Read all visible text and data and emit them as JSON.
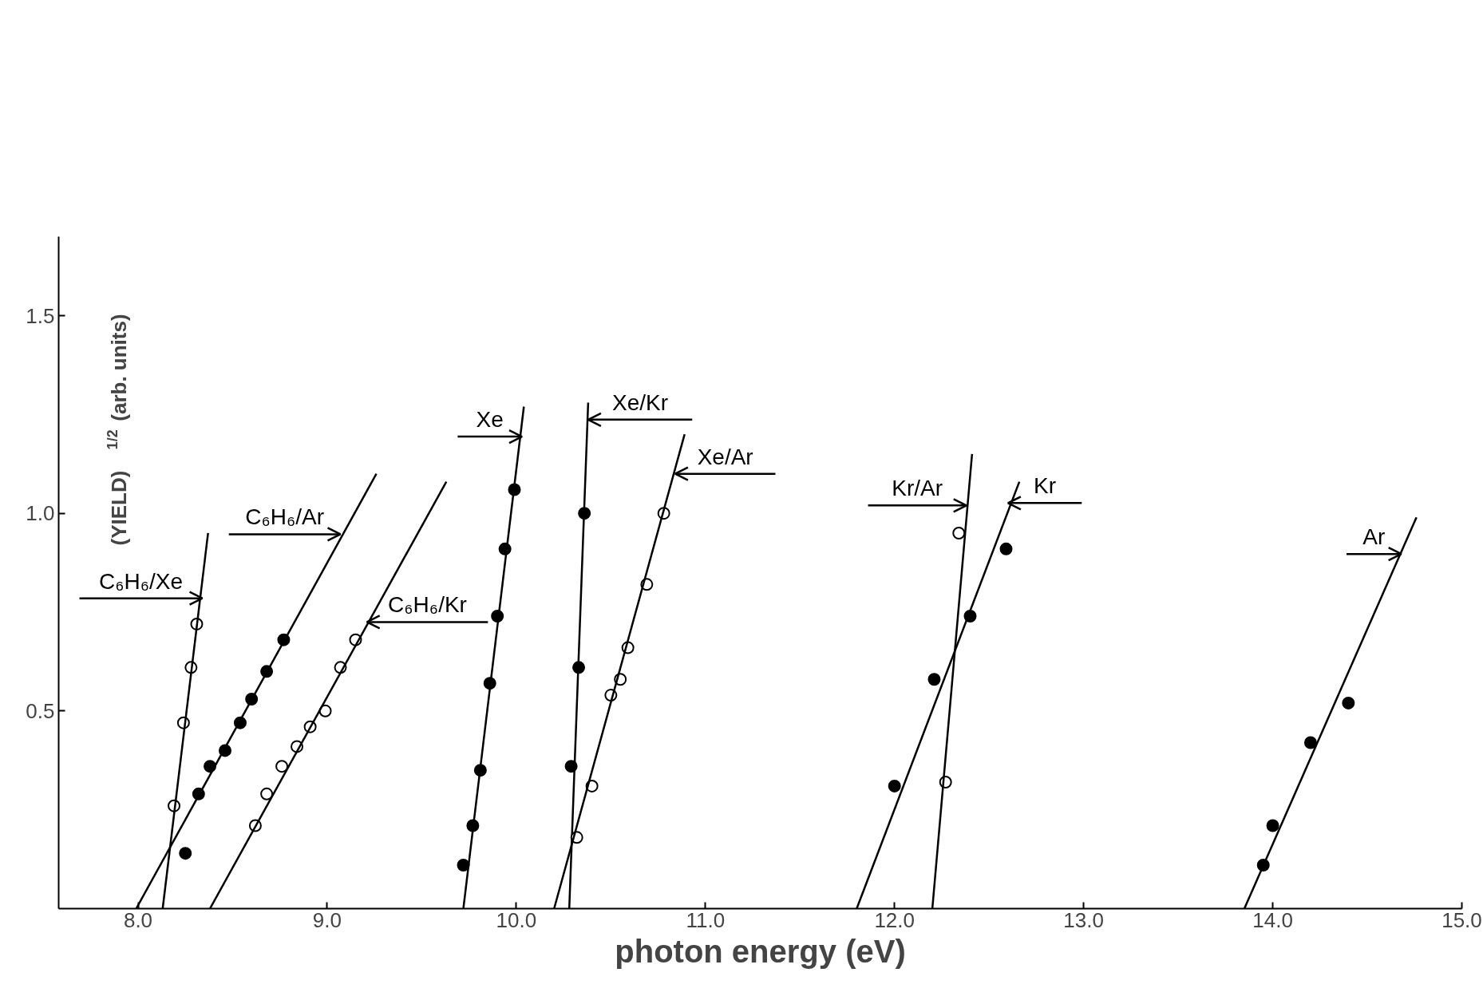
{
  "chart_data": {
    "type": "scatter",
    "xlabel": "photon energy (eV)",
    "ylabel": "(YIELD)$^{1/2}$ (arb. units)",
    "xlim": [
      7.58,
      15.0
    ],
    "ylim": [
      0,
      1.7
    ],
    "xticks": [
      {
        "value": 8,
        "label": "8.0"
      },
      {
        "value": 9,
        "label": "9.0"
      },
      {
        "value": 10,
        "label": "10.0"
      },
      {
        "value": 11,
        "label": "11.0"
      },
      {
        "value": 12,
        "label": "12.0"
      },
      {
        "value": 13,
        "label": "13.0"
      },
      {
        "value": 14,
        "label": "14.0"
      },
      {
        "value": 15,
        "label": "15.0"
      }
    ],
    "yticks": [
      {
        "value": 0.5,
        "label": "0.5"
      },
      {
        "value": 1,
        "label": "1.0"
      },
      {
        "value": 1.5,
        "label": "1.5"
      }
    ],
    "grid": false,
    "marker": "circle",
    "series": [
      {
        "color": "#ffffff",
        "x": [
          8.19,
          8.24,
          8.28,
          8.31
        ],
        "values": [
          0.26,
          0.47,
          0.61,
          0.72
        ]
      },
      {
        "type": "line",
        "marker": "none",
        "color": "#000000",
        "x": [
          8.13,
          8.37
        ],
        "values": [
          0,
          0.95
        ]
      },
      {
        "color": "#000000",
        "x": [
          8.25,
          8.32,
          8.38,
          8.46,
          8.54,
          8.6,
          8.68,
          8.77
        ],
        "values": [
          0.14,
          0.29,
          0.36,
          0.4,
          0.47,
          0.53,
          0.6,
          0.68
        ]
      },
      {
        "type": "line",
        "marker": "none",
        "color": "#000000",
        "x": [
          7.99,
          9.26
        ],
        "values": [
          0,
          1.1
        ]
      },
      {
        "color": "#ffffff",
        "x": [
          8.62,
          8.68,
          8.76,
          8.84,
          8.91,
          8.99,
          9.07,
          9.15
        ],
        "values": [
          0.21,
          0.29,
          0.36,
          0.41,
          0.46,
          0.5,
          0.61,
          0.68
        ]
      },
      {
        "type": "line",
        "marker": "none",
        "color": "#000000",
        "x": [
          8.38,
          9.63
        ],
        "values": [
          0,
          1.08
        ]
      },
      {
        "color": "#000000",
        "x": [
          9.72,
          9.77,
          9.81,
          9.86,
          9.9,
          9.94,
          9.99
        ],
        "values": [
          0.11,
          0.21,
          0.35,
          0.57,
          0.74,
          0.91,
          1.06
        ]
      },
      {
        "type": "line",
        "marker": "none",
        "color": "#000000",
        "x": [
          9.72,
          10.04
        ],
        "values": [
          0,
          1.27
        ]
      },
      {
        "color": "#000000",
        "x": [
          10.29,
          10.33,
          10.36
        ],
        "values": [
          0.36,
          0.61,
          1.0
        ]
      },
      {
        "type": "line",
        "marker": "none",
        "color": "#000000",
        "x": [
          10.28,
          10.38
        ],
        "values": [
          0,
          1.28
        ]
      },
      {
        "color": "#ffffff",
        "x": [
          10.32,
          10.4,
          10.5,
          10.55,
          10.59,
          10.69,
          10.78
        ],
        "values": [
          0.18,
          0.31,
          0.54,
          0.58,
          0.66,
          0.82,
          1.0
        ]
      },
      {
        "type": "line",
        "marker": "none",
        "color": "#000000",
        "x": [
          10.2,
          10.89
        ],
        "values": [
          0,
          1.2
        ]
      },
      {
        "color": "#ffffff",
        "x": [
          12.27,
          12.34
        ],
        "values": [
          0.32,
          0.95
        ]
      },
      {
        "type": "line",
        "marker": "none",
        "color": "#000000",
        "x": [
          12.2,
          12.41
        ],
        "values": [
          0,
          1.15
        ]
      },
      {
        "color": "#000000",
        "x": [
          12.0,
          12.21,
          12.4,
          12.59
        ],
        "values": [
          0.31,
          0.58,
          0.74,
          0.91
        ]
      },
      {
        "type": "line",
        "marker": "none",
        "color": "#000000",
        "x": [
          11.8,
          12.66
        ],
        "values": [
          0,
          1.08
        ]
      },
      {
        "color": "#000000",
        "x": [
          13.95,
          14.0,
          14.2,
          14.4
        ],
        "values": [
          0.11,
          0.21,
          0.42,
          0.52
        ]
      },
      {
        "type": "line",
        "marker": "none",
        "color": "#000000",
        "x": [
          13.85,
          14.76
        ],
        "values": [
          0,
          0.99
        ]
      }
    ],
    "annotations": [
      {
        "text": "C₆H₆/Xe",
        "x": 8.34,
        "y": 0.785
      },
      {
        "text": "C₆H₆/Ar",
        "x": 9.07,
        "y": 0.947
      },
      {
        "text": "C₆H₆/Kr",
        "x": 9.21,
        "y": 0.725
      },
      {
        "text": "Xe",
        "x": 10.03,
        "y": 1.194
      },
      {
        "text": "Xe/Kr",
        "x": 10.38,
        "y": 1.237
      },
      {
        "text": "Xe/Ar",
        "x": 10.84,
        "y": 1.1
      },
      {
        "text": "Kr/Ar",
        "x": 12.38,
        "y": 1.02
      },
      {
        "text": "Kr",
        "x": 12.6,
        "y": 1.026
      },
      {
        "text": "Ar",
        "x": 14.68,
        "y": 0.897
      }
    ]
  }
}
